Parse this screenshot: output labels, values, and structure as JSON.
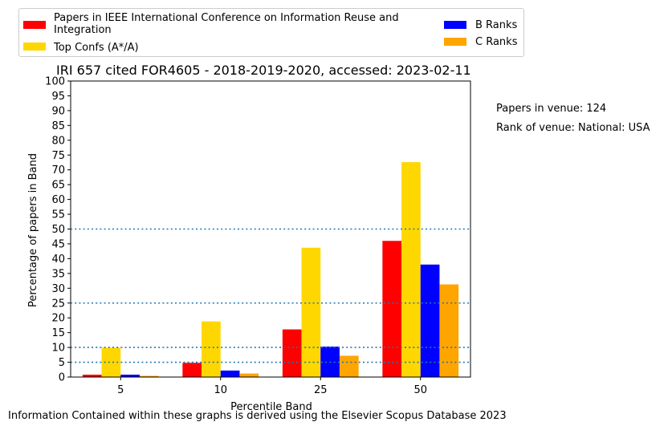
{
  "chart_data": {
    "type": "bar",
    "title": "IRI 657 cited FOR4605 - 2018-2019-2020, accessed: 2023-02-11",
    "xlabel": "Percentile Band",
    "ylabel": "Percentage of papers in Band",
    "ylim": [
      0,
      100
    ],
    "yticks": [
      "0",
      "5",
      "10",
      "15",
      "20",
      "25",
      "30",
      "35",
      "40",
      "45",
      "50",
      "55",
      "60",
      "65",
      "70",
      "75",
      "80",
      "85",
      "90",
      "95",
      "100"
    ],
    "categories": [
      "5",
      "10",
      "25",
      "50"
    ],
    "series": [
      {
        "name": "Papers in IEEE International Conference on Information Reuse and Integration",
        "color": "#ff0000",
        "values": [
          0.8,
          4.8,
          16.1,
          46.0
        ]
      },
      {
        "name": "Top Confs (A*/A)",
        "color": "#ffd700",
        "values": [
          9.9,
          18.8,
          43.7,
          72.6
        ]
      },
      {
        "name": "B Ranks",
        "color": "#0000ff",
        "values": [
          0.8,
          2.2,
          10.3,
          38.0
        ]
      },
      {
        "name": "C Ranks",
        "color": "#ffa500",
        "values": [
          0.4,
          1.2,
          7.2,
          31.3
        ]
      }
    ],
    "reference_lines": [
      5,
      10,
      25,
      50
    ],
    "reference_line_color": "#1f77b4",
    "legend_position": "top"
  },
  "side_notes": {
    "venue_papers": "Papers in venue: 124",
    "venue_rank": "Rank of venue: National: USA"
  },
  "footer": "Information Contained within these graphs is derived using the Elsevier Scopus Database 2023"
}
